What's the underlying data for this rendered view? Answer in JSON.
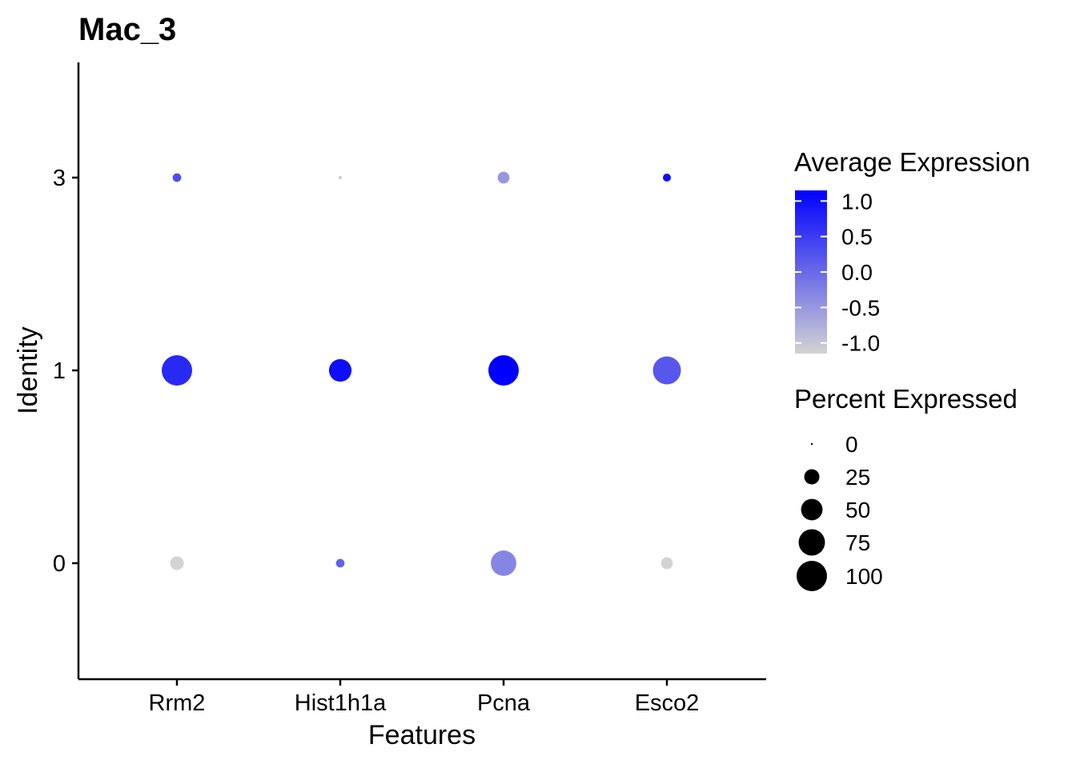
{
  "chart_data": {
    "type": "dot",
    "title": "Mac_3",
    "xlabel": "Features",
    "ylabel": "Identity",
    "features": [
      "Rrm2",
      "Hist1h1a",
      "Pcna",
      "Esco2"
    ],
    "identities": [
      "0",
      "1",
      "3"
    ],
    "points": [
      {
        "feature": "Rrm2",
        "identity": "3",
        "avg_exp": 0.3,
        "pct_exp": 8
      },
      {
        "feature": "Hist1h1a",
        "identity": "3",
        "avg_exp": -1.0,
        "pct_exp": 1
      },
      {
        "feature": "Pcna",
        "identity": "3",
        "avg_exp": -0.5,
        "pct_exp": 15
      },
      {
        "feature": "Esco2",
        "identity": "3",
        "avg_exp": 1.0,
        "pct_exp": 7
      },
      {
        "feature": "Rrm2",
        "identity": "1",
        "avg_exp": 0.7,
        "pct_exp": 100
      },
      {
        "feature": "Hist1h1a",
        "identity": "1",
        "avg_exp": 1.0,
        "pct_exp": 55
      },
      {
        "feature": "Pcna",
        "identity": "1",
        "avg_exp": 1.15,
        "pct_exp": 100
      },
      {
        "feature": "Esco2",
        "identity": "1",
        "avg_exp": 0.2,
        "pct_exp": 85
      },
      {
        "feature": "Rrm2",
        "identity": "0",
        "avg_exp": -1.15,
        "pct_exp": 20
      },
      {
        "feature": "Hist1h1a",
        "identity": "0",
        "avg_exp": 0.1,
        "pct_exp": 8
      },
      {
        "feature": "Pcna",
        "identity": "0",
        "avg_exp": -0.3,
        "pct_exp": 70
      },
      {
        "feature": "Esco2",
        "identity": "0",
        "avg_exp": -1.15,
        "pct_exp": 15
      }
    ],
    "color_scale": {
      "title": "Average Expression",
      "low_color": "#d3d3d3",
      "high_color": "#0000ff",
      "min": -1.15,
      "max": 1.15,
      "ticks": [
        "1.0",
        "0.5",
        "0.0",
        "-0.5",
        "-1.0"
      ],
      "tick_values": [
        1.0,
        0.5,
        0.0,
        -0.5,
        -1.0
      ]
    },
    "size_scale": {
      "title": "Percent Expressed",
      "ticks": [
        "0",
        "25",
        "50",
        "75",
        "100"
      ],
      "tick_values": [
        0,
        25,
        50,
        75,
        100
      ],
      "legend_color": "#000000"
    },
    "grid": false,
    "legend_position": "right"
  }
}
